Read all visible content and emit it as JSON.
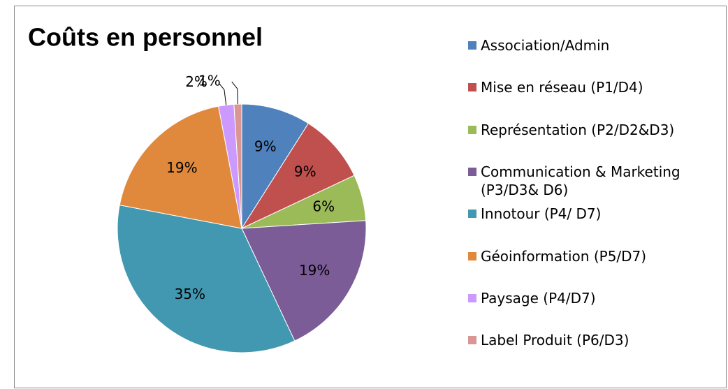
{
  "chart_data": {
    "type": "pie",
    "title": "Coûts en personnel",
    "categories": [
      "Association/Admin",
      "Mise en réseau (P1/D4)",
      "Représentation (P2/D2&D3)",
      "Communication & Marketing (P3/D3& D6)",
      "Innotour (P4/ D7)",
      "Géoinformation (P5/D7)",
      "Paysage (P4/D7)",
      "Label Produit (P6/D3)"
    ],
    "values": [
      9,
      9,
      6,
      19,
      35,
      19,
      2,
      1
    ],
    "value_labels": [
      "9%",
      "9%",
      "6%",
      "19%",
      "35%",
      "19%",
      "2%",
      "1%"
    ],
    "colors": [
      "#4f81bd",
      "#c0504d",
      "#9bbb59",
      "#7b5c97",
      "#4398b1",
      "#e0893d",
      "#cc99ff",
      "#d99694"
    ],
    "legend": "right"
  }
}
